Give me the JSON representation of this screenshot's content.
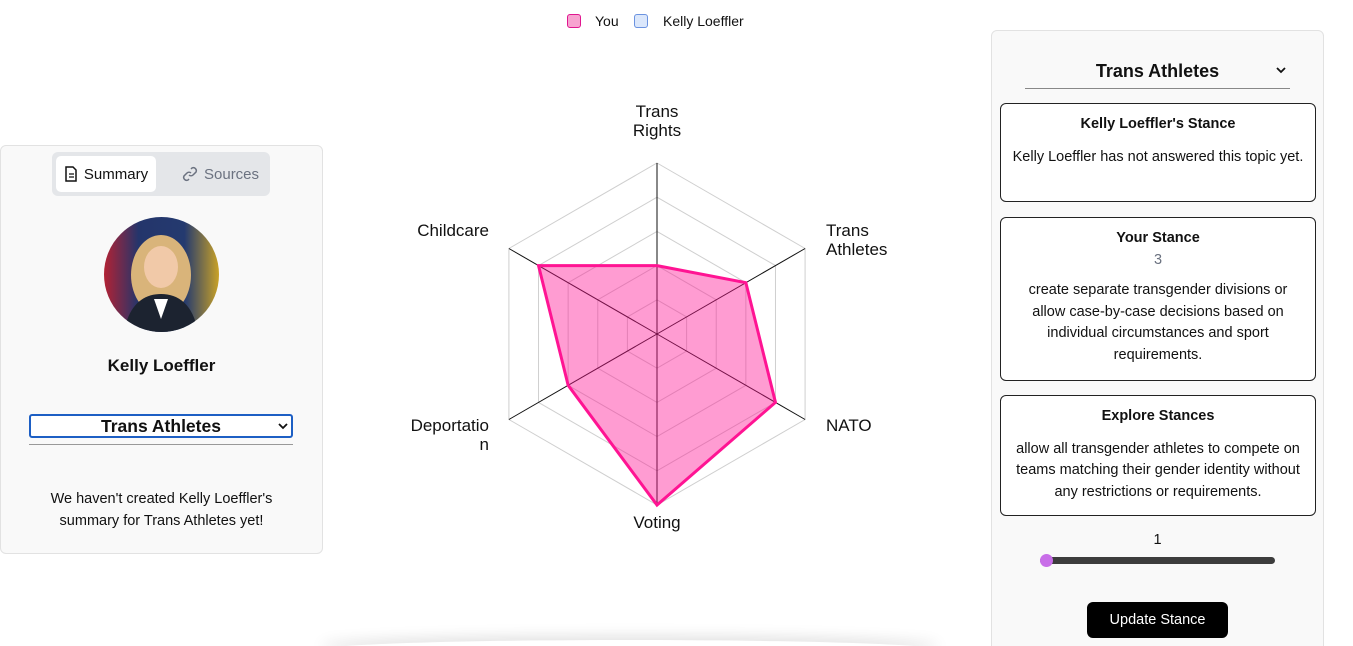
{
  "chart_data": {
    "type": "radar",
    "axes": [
      "Trans Rights",
      "Trans Athletes",
      "NATO",
      "Voting",
      "Deportation",
      "Childcare"
    ],
    "series": [
      {
        "name": "You",
        "color": "#ff1493",
        "values": [
          2,
          3,
          4,
          5,
          3,
          4
        ]
      },
      {
        "name": "Kelly Loeffler",
        "color": "#5b8def",
        "values": [
          null,
          null,
          null,
          null,
          null,
          null
        ]
      }
    ],
    "rlim": [
      0,
      5
    ],
    "rticks": [
      1,
      2,
      3,
      4,
      5
    ],
    "grid": true
  },
  "left_panel": {
    "tabs": [
      "Summary",
      "Sources"
    ],
    "name": "Kelly Loeffler",
    "topic_select": "Trans Athletes",
    "summary": "We haven't created Kelly Loeffler's summary for Trans Athletes yet!"
  },
  "right_panel": {
    "topic_select": "Trans Athletes",
    "cards": [
      {
        "title": "Kelly Loeffler's Stance",
        "text": "Kelly Loeffler has not answered this topic yet."
      },
      {
        "title": "Your Stance",
        "value": 3,
        "text": "create separate transgender divisions or allow case-by-case decisions based on individual circumstances and sport requirements."
      },
      {
        "title": "Explore Stances",
        "text": "allow all transgender athletes to compete on teams matching their gender identity without any restrictions or requirements."
      }
    ],
    "slider": {
      "value": 1,
      "min": 1,
      "max": 5
    },
    "button": "Update Stance"
  }
}
